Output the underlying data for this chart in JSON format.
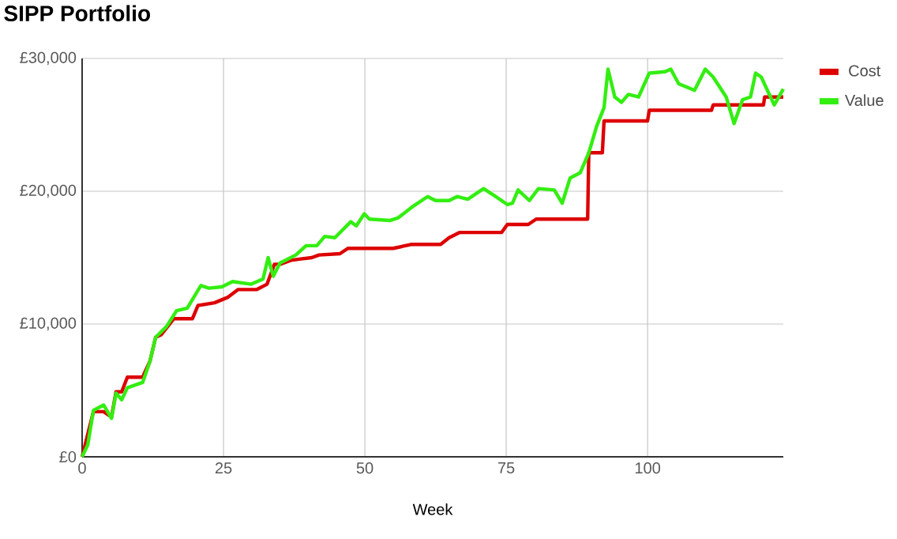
{
  "chart_data": {
    "type": "line",
    "title": "SIPP Portfolio",
    "xlabel": "Week",
    "xlim": [
      0,
      124
    ],
    "xticks": [
      0,
      25,
      50,
      75,
      100
    ],
    "ylim": [
      0,
      30000
    ],
    "yticks": [
      {
        "value": 0,
        "label": "£0"
      },
      {
        "value": 10000,
        "label": "£10,000"
      },
      {
        "value": 20000,
        "label": "£20,000"
      },
      {
        "value": 30000,
        "label": "£30,000"
      }
    ],
    "grid": true,
    "legend": "right",
    "marker": "none",
    "line_style": "solid",
    "series": [
      {
        "name": "Cost",
        "color": "#dd0000",
        "x": [
          0,
          2,
          3.8,
          5.2,
          6,
          7,
          8,
          10.7,
          12,
          13,
          14,
          16.2,
          19.5,
          20.5,
          23.4,
          25.7,
          27.6,
          30.9,
          32.7,
          34,
          35,
          36.9,
          38.7,
          40.6,
          41.9,
          45.6,
          47,
          55,
          58.3,
          63.4,
          64.9,
          66.8,
          74.2,
          75.2,
          78.9,
          80.3,
          86.4,
          89.4,
          89.6,
          92,
          92.3,
          100,
          100.3,
          111.3,
          111.6,
          120.5,
          120.7,
          124
        ],
        "values": [
          0,
          3400,
          3400,
          3000,
          4900,
          4900,
          6000,
          6000,
          7200,
          9000,
          9200,
          10400,
          10400,
          11400,
          11600,
          12000,
          12600,
          12600,
          13000,
          14500,
          14500,
          14800,
          14900,
          15000,
          15200,
          15300,
          15700,
          15700,
          16000,
          16000,
          16500,
          16900,
          16900,
          17500,
          17500,
          17900,
          17900,
          17900,
          22900,
          22900,
          25300,
          25300,
          26100,
          26100,
          26500,
          26500,
          27100,
          27100
        ]
      },
      {
        "name": "Value",
        "color": "#33ee11",
        "x": [
          0,
          1,
          2,
          3.8,
          5.2,
          6,
          7,
          8,
          10.7,
          12,
          13,
          14.9,
          16.7,
          18.6,
          21,
          22.4,
          24.7,
          26.6,
          29.9,
          32,
          32.9,
          33.8,
          35,
          37.8,
          39.6,
          41.5,
          42.9,
          44.7,
          47.5,
          48.5,
          49.9,
          50.8,
          54.5,
          55.9,
          58.3,
          61.1,
          62.5,
          64.9,
          66.3,
          68.2,
          71,
          72.8,
          75.2,
          76.1,
          77.1,
          79.1,
          80.7,
          83.5,
          84.9,
          86.3,
          88.1,
          89.6,
          91,
          92.3,
          93,
          94.2,
          95.4,
          96.6,
          98.4,
          100.3,
          103.1,
          104.1,
          105.5,
          108.3,
          110.2,
          111.6,
          113.9,
          115.3,
          116.8,
          118.2,
          119.1,
          120.1,
          122.4,
          124
        ],
        "values": [
          0,
          900,
          3500,
          3900,
          2900,
          4800,
          4300,
          5200,
          5600,
          7200,
          9000,
          9800,
          11000,
          11200,
          12900,
          12700,
          12800,
          13200,
          13000,
          13400,
          15000,
          13600,
          14600,
          15200,
          15900,
          15900,
          16600,
          16500,
          17700,
          17400,
          18300,
          17900,
          17800,
          18000,
          18800,
          19600,
          19300,
          19300,
          19600,
          19400,
          20200,
          19700,
          19000,
          19100,
          20100,
          19300,
          20200,
          20100,
          19100,
          21000,
          21400,
          22900,
          24900,
          26300,
          29200,
          27100,
          26700,
          27300,
          27100,
          28900,
          29000,
          29200,
          28100,
          27600,
          29200,
          28600,
          27100,
          25100,
          26900,
          27100,
          28900,
          28600,
          26500,
          27700
        ]
      }
    ]
  }
}
